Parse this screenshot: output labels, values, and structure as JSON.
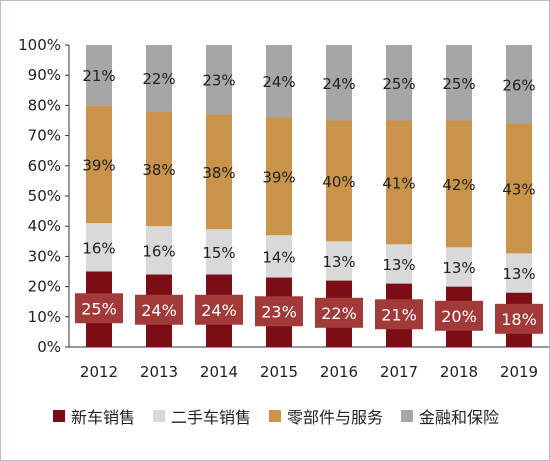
{
  "chart_data": {
    "type": "bar",
    "stacked": true,
    "percent": true,
    "categories": [
      "2012",
      "2013",
      "2014",
      "2015",
      "2016",
      "2017",
      "2018",
      "2019"
    ],
    "ylim": [
      0,
      100
    ],
    "y_ticks": [
      "0%",
      "10%",
      "20%",
      "30%",
      "40%",
      "50%",
      "60%",
      "70%",
      "80%",
      "90%",
      "100%"
    ],
    "series": [
      {
        "name": "新车销售",
        "color": "#7b0d14",
        "values": [
          25,
          24,
          24,
          23,
          22,
          21,
          20,
          18
        ]
      },
      {
        "name": "二手车销售",
        "color": "#d9d9d9",
        "values": [
          16,
          16,
          15,
          14,
          13,
          13,
          13,
          13
        ]
      },
      {
        "name": "零部件与服务",
        "color": "#c9944a",
        "values": [
          39,
          38,
          38,
          39,
          40,
          41,
          42,
          43
        ]
      },
      {
        "name": "金融和保险",
        "color": "#a6a6a6",
        "values": [
          21,
          22,
          23,
          24,
          24,
          25,
          25,
          26
        ]
      }
    ],
    "label_box_color": "#a33a3a",
    "grid": false,
    "legend_position": "bottom"
  }
}
